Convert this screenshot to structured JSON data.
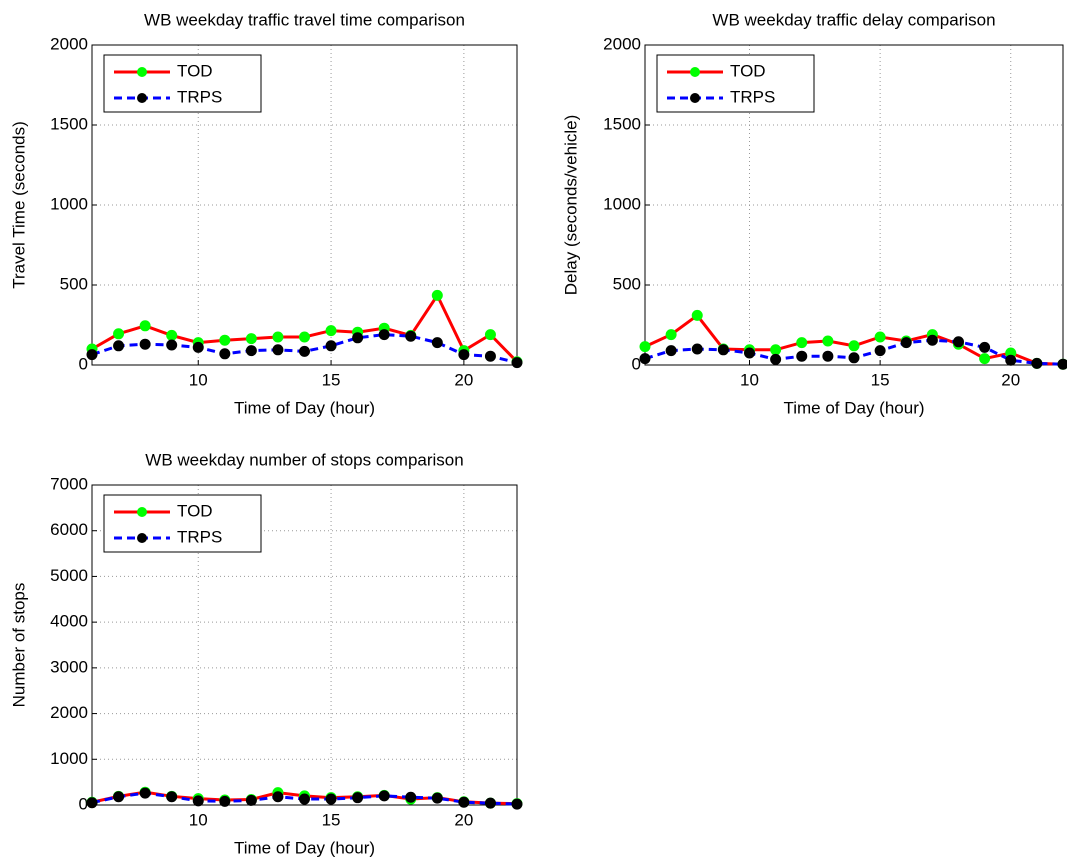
{
  "chart_data": [
    {
      "type": "line",
      "title": "WB weekday traffic travel time comparison",
      "xlabel": "Time of Day (hour)",
      "ylabel": "Travel Time (seconds)",
      "x": [
        6,
        7,
        8,
        9,
        10,
        11,
        12,
        13,
        14,
        15,
        16,
        17,
        18,
        19,
        20,
        21,
        22
      ],
      "series": [
        {
          "name": "TOD",
          "color": "#ff0000",
          "marker_color": "#00ff00",
          "dashed": false,
          "values": [
            100,
            195,
            245,
            185,
            140,
            155,
            165,
            175,
            175,
            215,
            205,
            230,
            185,
            435,
            90,
            190,
            20
          ]
        },
        {
          "name": "TRPS",
          "color": "#0000ff",
          "marker_color": "#000000",
          "dashed": true,
          "values": [
            65,
            120,
            130,
            125,
            110,
            70,
            90,
            95,
            85,
            120,
            170,
            190,
            180,
            140,
            65,
            55,
            15
          ]
        }
      ],
      "xlim": [
        6,
        22
      ],
      "xticks": [
        10,
        15,
        20
      ],
      "ylim": [
        0,
        2000
      ],
      "yticks": [
        0,
        500,
        1000,
        1500,
        2000
      ],
      "grid": true,
      "legend": "upper-left"
    },
    {
      "type": "line",
      "title": "WB weekday traffic delay comparison",
      "xlabel": "Time of Day (hour)",
      "ylabel": "Delay (seconds/vehicle)",
      "x": [
        6,
        7,
        8,
        9,
        10,
        11,
        12,
        13,
        14,
        15,
        16,
        17,
        18,
        19,
        20,
        21,
        22
      ],
      "series": [
        {
          "name": "TOD",
          "color": "#ff0000",
          "marker_color": "#00ff00",
          "dashed": false,
          "values": [
            115,
            190,
            310,
            100,
            95,
            95,
            140,
            150,
            120,
            175,
            150,
            190,
            130,
            40,
            75,
            10,
            5
          ]
        },
        {
          "name": "TRPS",
          "color": "#0000ff",
          "marker_color": "#000000",
          "dashed": true,
          "values": [
            40,
            90,
            100,
            95,
            75,
            35,
            55,
            55,
            45,
            90,
            140,
            155,
            145,
            110,
            30,
            10,
            5
          ]
        }
      ],
      "xlim": [
        6,
        22
      ],
      "xticks": [
        10,
        15,
        20
      ],
      "ylim": [
        0,
        2000
      ],
      "yticks": [
        0,
        500,
        1000,
        1500,
        2000
      ],
      "grid": true,
      "legend": "upper-left"
    },
    {
      "type": "line",
      "title": "WB weekday number of stops comparison",
      "xlabel": "Time of Day (hour)",
      "ylabel": "Number of stops",
      "x": [
        6,
        7,
        8,
        9,
        10,
        11,
        12,
        13,
        14,
        15,
        16,
        17,
        18,
        19,
        20,
        21,
        22
      ],
      "series": [
        {
          "name": "TOD",
          "color": "#ff0000",
          "marker_color": "#00ff00",
          "dashed": false,
          "values": [
            60,
            190,
            280,
            190,
            140,
            110,
            120,
            270,
            200,
            160,
            180,
            210,
            130,
            160,
            70,
            40,
            30
          ]
        },
        {
          "name": "TRPS",
          "color": "#0000ff",
          "marker_color": "#000000",
          "dashed": true,
          "values": [
            50,
            180,
            260,
            180,
            90,
            80,
            100,
            180,
            130,
            130,
            160,
            200,
            170,
            150,
            60,
            40,
            20
          ]
        }
      ],
      "xlim": [
        6,
        22
      ],
      "xticks": [
        10,
        15,
        20
      ],
      "ylim": [
        0,
        7000
      ],
      "yticks": [
        0,
        1000,
        2000,
        3000,
        4000,
        5000,
        6000,
        7000
      ],
      "grid": true,
      "legend": "upper-left"
    }
  ]
}
